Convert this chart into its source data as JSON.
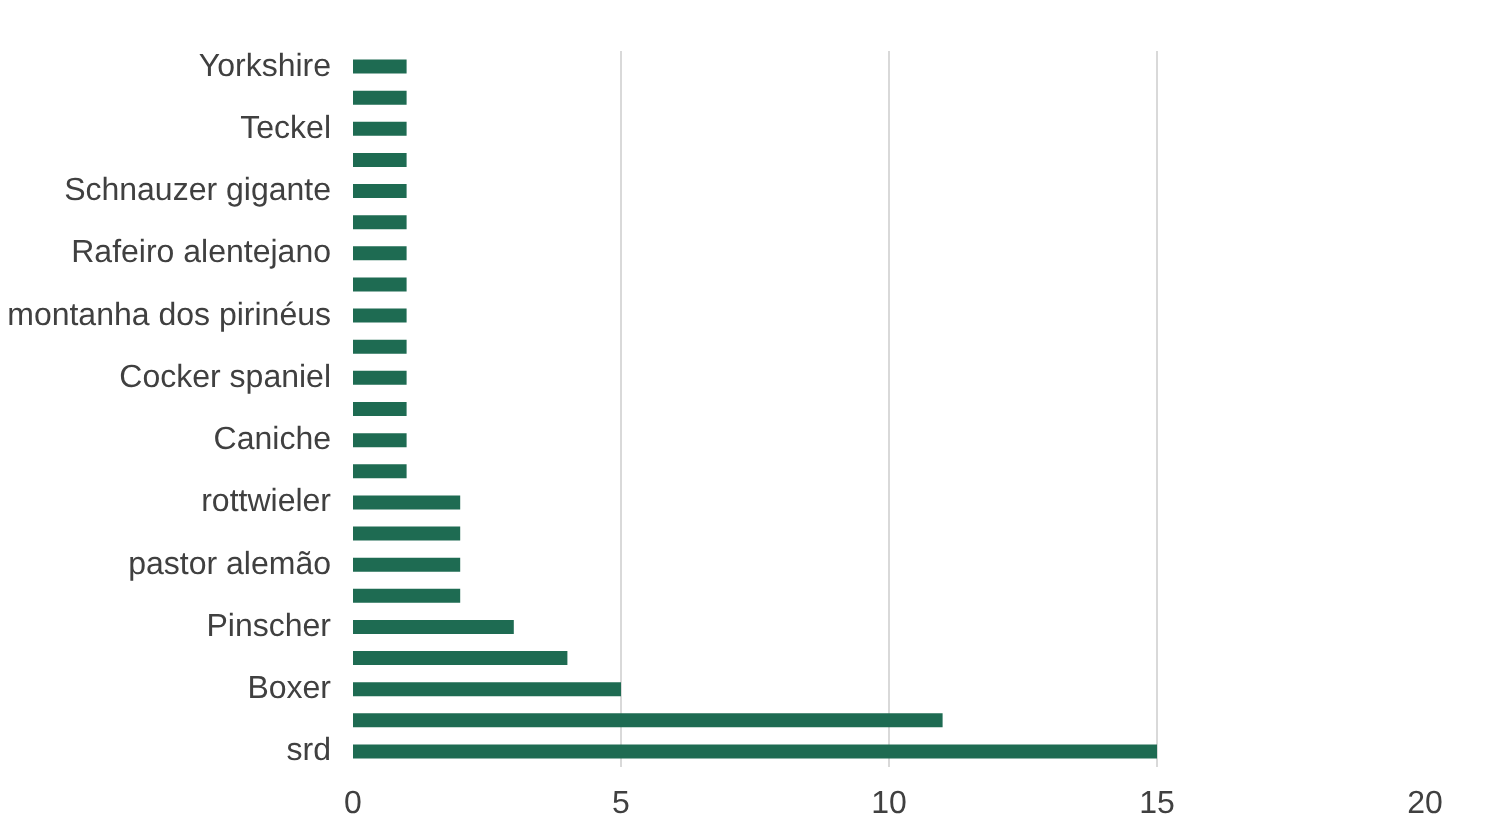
{
  "chart_data": {
    "type": "bar",
    "orientation": "horizontal",
    "categories": [
      "Yorkshire",
      null,
      "Teckel",
      null,
      "Schnauzer gigante",
      null,
      "Rafeiro alentejano",
      null,
      "montanha dos pirinéus",
      null,
      "Cocker spaniel",
      null,
      "Caniche",
      null,
      "rottwieler",
      null,
      "pastor alemão",
      null,
      "Pinscher",
      null,
      "Boxer",
      null,
      "srd"
    ],
    "values": [
      1,
      1,
      1,
      1,
      1,
      1,
      1,
      1,
      1,
      1,
      1,
      1,
      1,
      1,
      2,
      2,
      2,
      2,
      3,
      4,
      5,
      11,
      15
    ],
    "color": "#1e6b52",
    "xlim": [
      0,
      20
    ],
    "xticks": [
      0,
      5,
      10,
      15,
      20
    ],
    "grid": "x"
  }
}
